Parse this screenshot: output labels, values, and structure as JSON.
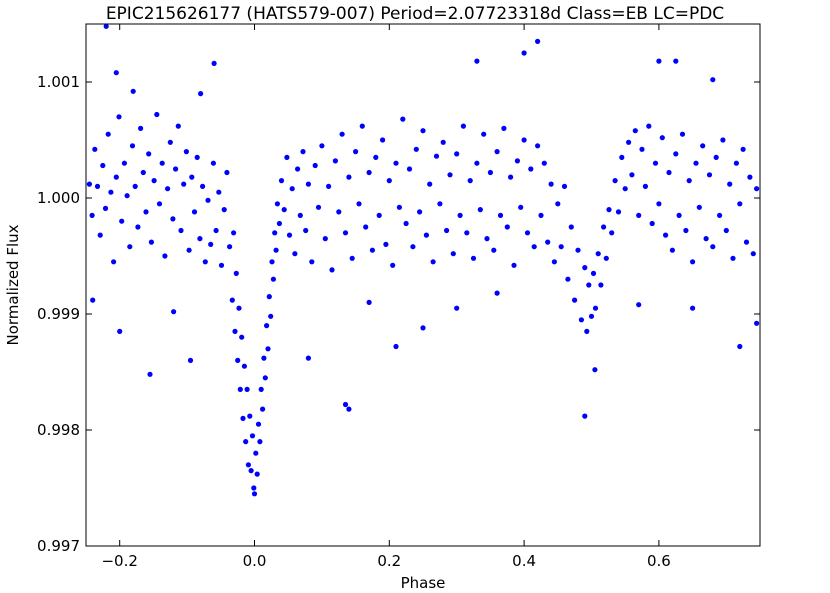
{
  "chart_data": {
    "type": "scatter",
    "title": "EPIC215626177 (HATS579-007)   Period=2.07723318d   Class=EB   LC=PDC",
    "xlabel": "Phase",
    "ylabel": "Normalized Flux",
    "xlim": [
      -0.25,
      0.75
    ],
    "ylim": [
      0.997,
      1.0015
    ],
    "x_ticks": [
      -0.2,
      0.0,
      0.2,
      0.4,
      0.6
    ],
    "x_tick_labels": [
      "−0.2",
      "0.0",
      "0.2",
      "0.4",
      "0.6"
    ],
    "y_ticks": [
      0.997,
      0.998,
      0.999,
      1.0,
      1.001
    ],
    "y_tick_labels": [
      "0.997",
      "0.998",
      "0.999",
      "1.000",
      "1.001"
    ],
    "grid": false,
    "legend": "none",
    "marker_color": "#0000ff",
    "series": [
      {
        "points": [
          [
            -0.245,
            1.00012
          ],
          [
            -0.241,
            0.99985
          ],
          [
            -0.237,
            1.00042
          ],
          [
            -0.233,
            1.0001
          ],
          [
            -0.229,
            0.99968
          ],
          [
            -0.225,
            1.00028
          ],
          [
            -0.221,
            0.99991
          ],
          [
            -0.217,
            1.00055
          ],
          [
            -0.213,
            1.00005
          ],
          [
            -0.209,
            0.99945
          ],
          [
            -0.205,
            1.00018
          ],
          [
            -0.201,
            1.0007
          ],
          [
            -0.197,
            0.9998
          ],
          [
            -0.193,
            1.0003
          ],
          [
            -0.189,
            1.00002
          ],
          [
            -0.185,
            0.99958
          ],
          [
            -0.181,
            1.00045
          ],
          [
            -0.177,
            1.0001
          ],
          [
            -0.173,
            0.99975
          ],
          [
            -0.169,
            1.0006
          ],
          [
            -0.165,
            1.00022
          ],
          [
            -0.161,
            0.99988
          ],
          [
            -0.157,
            1.00038
          ],
          [
            -0.153,
            0.99962
          ],
          [
            -0.149,
            1.00015
          ],
          [
            -0.145,
            1.00072
          ],
          [
            -0.141,
            0.99995
          ],
          [
            -0.137,
            1.0003
          ],
          [
            -0.133,
            0.9995
          ],
          [
            -0.129,
            1.00008
          ],
          [
            -0.125,
            1.00048
          ],
          [
            -0.121,
            0.99982
          ],
          [
            -0.117,
            1.00025
          ],
          [
            -0.113,
            1.00062
          ],
          [
            -0.109,
            0.99972
          ],
          [
            -0.105,
            1.00012
          ],
          [
            -0.101,
            1.0004
          ],
          [
            -0.097,
            0.99955
          ],
          [
            -0.093,
            1.00018
          ],
          [
            -0.089,
            0.99988
          ],
          [
            -0.085,
            1.00035
          ],
          [
            -0.081,
            0.99965
          ],
          [
            -0.077,
            1.0001
          ],
          [
            -0.073,
            0.99945
          ],
          [
            -0.069,
            0.99998
          ],
          [
            -0.065,
            0.9996
          ],
          [
            -0.061,
            1.0003
          ],
          [
            -0.057,
            0.99972
          ],
          [
            -0.053,
            1.00005
          ],
          [
            -0.049,
            0.99942
          ],
          [
            -0.045,
            0.9999
          ],
          [
            -0.041,
            1.00022
          ],
          [
            -0.037,
            0.99958
          ],
          [
            -0.033,
            0.99912
          ],
          [
            -0.031,
            0.9997
          ],
          [
            -0.029,
            0.99885
          ],
          [
            -0.027,
            0.99935
          ],
          [
            -0.025,
            0.9986
          ],
          [
            -0.023,
            0.99905
          ],
          [
            -0.021,
            0.99835
          ],
          [
            -0.019,
            0.9988
          ],
          [
            -0.017,
            0.9981
          ],
          [
            -0.015,
            0.99855
          ],
          [
            -0.013,
            0.9979
          ],
          [
            -0.011,
            0.99835
          ],
          [
            -0.009,
            0.9977
          ],
          [
            -0.007,
            0.99812
          ],
          [
            -0.005,
            0.99765
          ],
          [
            -0.003,
            0.99795
          ],
          [
            -0.001,
            0.9975
          ],
          [
            0.0,
            0.99745
          ],
          [
            0.002,
            0.9978
          ],
          [
            0.004,
            0.99762
          ],
          [
            0.006,
            0.99805
          ],
          [
            0.008,
            0.9979
          ],
          [
            0.01,
            0.99835
          ],
          [
            0.012,
            0.99818
          ],
          [
            0.014,
            0.99862
          ],
          [
            0.016,
            0.99845
          ],
          [
            0.018,
            0.9989
          ],
          [
            0.02,
            0.9987
          ],
          [
            0.022,
            0.99915
          ],
          [
            0.024,
            0.99898
          ],
          [
            0.026,
            0.99945
          ],
          [
            0.028,
            0.9993
          ],
          [
            0.03,
            0.9997
          ],
          [
            0.032,
            0.99955
          ],
          [
            0.034,
            0.99995
          ],
          [
            0.037,
            0.99978
          ],
          [
            0.04,
            1.00015
          ],
          [
            0.044,
            0.9999
          ],
          [
            0.048,
            1.00035
          ],
          [
            0.052,
            0.99968
          ],
          [
            0.056,
            1.00008
          ],
          [
            0.06,
            0.99952
          ],
          [
            0.064,
            1.00025
          ],
          [
            0.068,
            0.99985
          ],
          [
            0.072,
            1.0004
          ],
          [
            0.076,
            0.99972
          ],
          [
            0.08,
            1.00012
          ],
          [
            0.085,
            0.99945
          ],
          [
            0.09,
            1.00028
          ],
          [
            0.095,
            0.99992
          ],
          [
            0.1,
            1.00045
          ],
          [
            0.105,
            0.99965
          ],
          [
            0.11,
            1.0001
          ],
          [
            0.115,
            0.99938
          ],
          [
            0.12,
            1.00032
          ],
          [
            0.125,
            0.99988
          ],
          [
            0.13,
            1.00055
          ],
          [
            0.135,
            0.9997
          ],
          [
            0.14,
            1.00018
          ],
          [
            0.145,
            0.99948
          ],
          [
            0.15,
            1.0004
          ],
          [
            0.155,
            0.99995
          ],
          [
            0.16,
            1.00062
          ],
          [
            0.165,
            0.99975
          ],
          [
            0.17,
            1.00022
          ],
          [
            0.175,
            0.99955
          ],
          [
            0.18,
            1.00035
          ],
          [
            0.185,
            0.99985
          ],
          [
            0.19,
            1.0005
          ],
          [
            0.195,
            0.9996
          ],
          [
            0.2,
            1.00015
          ],
          [
            0.205,
            0.99942
          ],
          [
            0.21,
            1.0003
          ],
          [
            0.215,
            0.99992
          ],
          [
            0.22,
            1.00068
          ],
          [
            0.225,
            0.99978
          ],
          [
            0.23,
            1.00025
          ],
          [
            0.235,
            0.99958
          ],
          [
            0.24,
            1.00042
          ],
          [
            0.245,
            0.99988
          ],
          [
            0.25,
            1.00058
          ],
          [
            0.255,
            0.99968
          ],
          [
            0.26,
            1.00012
          ],
          [
            0.265,
            0.99945
          ],
          [
            0.27,
            1.00036
          ],
          [
            0.275,
            0.99995
          ],
          [
            0.28,
            1.00048
          ],
          [
            0.285,
            0.99972
          ],
          [
            0.29,
            1.0002
          ],
          [
            0.295,
            0.99952
          ],
          [
            0.3,
            1.00038
          ],
          [
            0.305,
            0.99985
          ],
          [
            0.31,
            1.00062
          ],
          [
            0.315,
            0.9997
          ],
          [
            0.32,
            1.00015
          ],
          [
            0.325,
            0.99948
          ],
          [
            0.33,
            1.0003
          ],
          [
            0.335,
            0.9999
          ],
          [
            0.34,
            1.00055
          ],
          [
            0.345,
            0.99965
          ],
          [
            0.35,
            1.00022
          ],
          [
            0.355,
            0.99955
          ],
          [
            0.36,
            1.0004
          ],
          [
            0.365,
            0.99985
          ],
          [
            0.37,
            1.0006
          ],
          [
            0.375,
            0.99975
          ],
          [
            0.38,
            1.00018
          ],
          [
            0.385,
            0.99942
          ],
          [
            0.39,
            1.00032
          ],
          [
            0.395,
            0.99992
          ],
          [
            0.4,
            1.0005
          ],
          [
            0.405,
            0.9997
          ],
          [
            0.41,
            1.00025
          ],
          [
            0.415,
            0.99958
          ],
          [
            0.42,
            1.00045
          ],
          [
            0.425,
            0.99985
          ],
          [
            0.43,
            1.0003
          ],
          [
            0.435,
            0.99962
          ],
          [
            0.44,
            1.00012
          ],
          [
            0.445,
            0.99945
          ],
          [
            0.45,
            0.99995
          ],
          [
            0.455,
            0.99958
          ],
          [
            0.46,
            1.0001
          ],
          [
            0.465,
            0.9993
          ],
          [
            0.47,
            0.99975
          ],
          [
            0.475,
            0.99912
          ],
          [
            0.48,
            0.99955
          ],
          [
            0.485,
            0.99895
          ],
          [
            0.49,
            0.9994
          ],
          [
            0.493,
            0.99885
          ],
          [
            0.496,
            0.99925
          ],
          [
            0.5,
            0.99898
          ],
          [
            0.503,
            0.99935
          ],
          [
            0.506,
            0.99905
          ],
          [
            0.51,
            0.99952
          ],
          [
            0.514,
            0.99925
          ],
          [
            0.518,
            0.99975
          ],
          [
            0.522,
            0.99948
          ],
          [
            0.526,
            0.9999
          ],
          [
            0.53,
            0.9997
          ],
          [
            0.535,
            1.00015
          ],
          [
            0.54,
            0.99988
          ],
          [
            0.545,
            1.00035
          ],
          [
            0.55,
            1.00008
          ],
          [
            0.555,
            1.00048
          ],
          [
            0.56,
            1.0002
          ],
          [
            0.565,
            1.00058
          ],
          [
            0.57,
            0.99985
          ],
          [
            0.575,
            1.00042
          ],
          [
            0.58,
            1.0001
          ],
          [
            0.585,
            1.00062
          ],
          [
            0.59,
            0.99978
          ],
          [
            0.595,
            1.0003
          ],
          [
            0.6,
            0.99995
          ],
          [
            0.605,
            1.00052
          ],
          [
            0.61,
            0.99968
          ],
          [
            0.615,
            1.00022
          ],
          [
            0.62,
            0.99955
          ],
          [
            0.625,
            1.00038
          ],
          [
            0.63,
            0.99985
          ],
          [
            0.635,
            1.00055
          ],
          [
            0.64,
            0.99972
          ],
          [
            0.645,
            1.00015
          ],
          [
            0.65,
            0.99945
          ],
          [
            0.655,
            1.0003
          ],
          [
            0.66,
            0.99992
          ],
          [
            0.665,
            1.00045
          ],
          [
            0.67,
            0.99965
          ],
          [
            0.675,
            1.0002
          ],
          [
            0.68,
            0.99958
          ],
          [
            0.685,
            1.00035
          ],
          [
            0.69,
            0.99985
          ],
          [
            0.695,
            1.0005
          ],
          [
            0.7,
            0.99972
          ],
          [
            0.705,
            1.00012
          ],
          [
            0.71,
            0.99948
          ],
          [
            0.715,
            1.0003
          ],
          [
            0.72,
            0.99995
          ],
          [
            0.725,
            1.00042
          ],
          [
            0.73,
            0.99962
          ],
          [
            0.735,
            1.00018
          ],
          [
            0.74,
            0.99952
          ],
          [
            0.745,
            1.00008
          ],
          [
            -0.22,
            1.00148
          ],
          [
            -0.205,
            1.00108
          ],
          [
            -0.155,
            0.99848
          ],
          [
            -0.095,
            0.9986
          ],
          [
            -0.06,
            1.00116
          ],
          [
            -0.24,
            0.99912
          ],
          [
            -0.12,
            0.99902
          ],
          [
            0.08,
            0.99862
          ],
          [
            0.135,
            0.99822
          ],
          [
            0.14,
            0.99818
          ],
          [
            0.33,
            1.00118
          ],
          [
            0.3,
            0.99905
          ],
          [
            0.25,
            0.99888
          ],
          [
            0.4,
            1.00125
          ],
          [
            0.42,
            1.00135
          ],
          [
            0.49,
            0.99812
          ],
          [
            0.505,
            0.99852
          ],
          [
            0.6,
            1.00118
          ],
          [
            0.625,
            1.00118
          ],
          [
            0.68,
            1.00102
          ],
          [
            0.72,
            0.99872
          ],
          [
            0.745,
            0.99892
          ],
          [
            0.65,
            0.99905
          ],
          [
            -0.2,
            0.99885
          ],
          [
            0.21,
            0.99872
          ],
          [
            0.17,
            0.9991
          ],
          [
            0.36,
            0.99918
          ],
          [
            0.57,
            0.99908
          ],
          [
            -0.18,
            1.00092
          ],
          [
            -0.08,
            1.0009
          ]
        ]
      }
    ]
  }
}
